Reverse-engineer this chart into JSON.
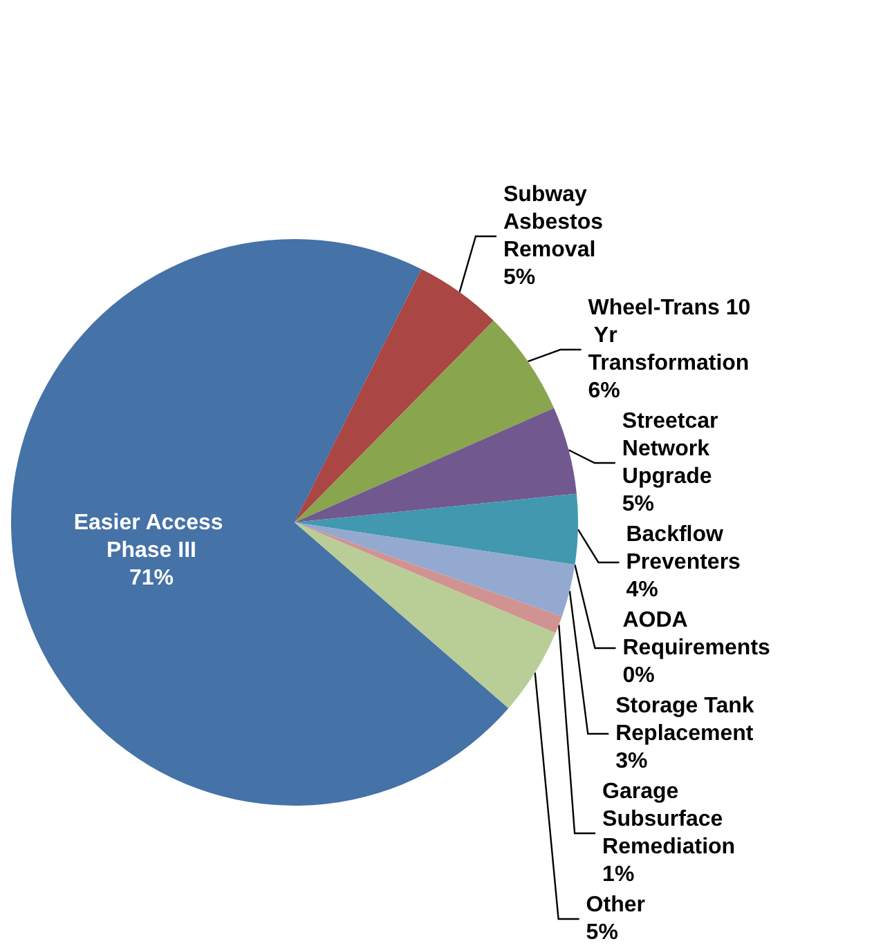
{
  "chart_data": {
    "type": "pie",
    "categories": [
      "Easier Access Phase III",
      "Subway Asbestos Removal",
      "Wheel-Trans 10 Yr Transformation",
      "Streetcar Network Upgrade",
      "Backflow Preventers",
      "AODA Requirements",
      "Storage Tank Replacement",
      "Garage Subsurface Remediation",
      "Other"
    ],
    "values": [
      71,
      5,
      6,
      5,
      4,
      0,
      3,
      1,
      5
    ],
    "value_labels": [
      "71%",
      "5%",
      "6%",
      "5%",
      "4%",
      "0%",
      "3%",
      "1%",
      "5%"
    ],
    "colors": [
      "#4572a7",
      "#aa4643",
      "#89a54e",
      "#71588f",
      "#4198af",
      "#db843d",
      "#93a9cf",
      "#d19392",
      "#b9cd96"
    ],
    "legend": false
  }
}
